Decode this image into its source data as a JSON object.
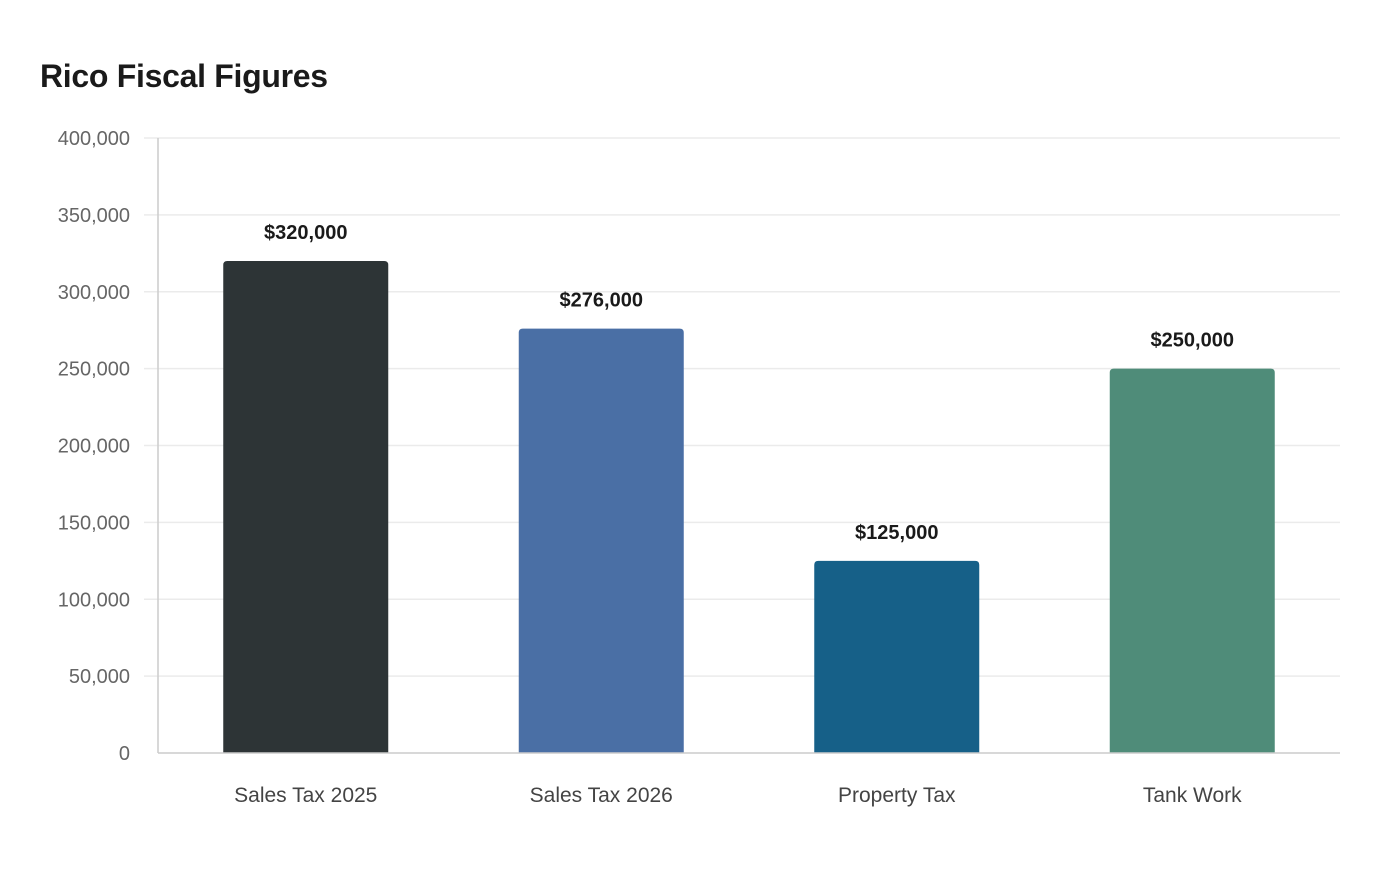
{
  "chart_data": {
    "type": "bar",
    "title": "Rico Fiscal Figures",
    "categories": [
      "Sales Tax 2025",
      "Sales Tax 2026",
      "Property Tax",
      "Tank Work"
    ],
    "values": [
      320000,
      276000,
      125000,
      250000
    ],
    "data_labels": [
      "$320,000",
      "$276,000",
      "$125,000",
      "$250,000"
    ],
    "colors": [
      "#2d3436",
      "#4a6fa5",
      "#166088",
      "#4f8c79"
    ],
    "ylim": [
      0,
      400000
    ],
    "yticks": [
      0,
      50000,
      100000,
      150000,
      200000,
      250000,
      300000,
      350000,
      400000
    ],
    "ytick_labels": [
      "0",
      "50,000",
      "100,000",
      "150,000",
      "200,000",
      "250,000",
      "300,000",
      "350,000",
      "400,000"
    ],
    "xlabel": "",
    "ylabel": "",
    "grid": true,
    "legend": "none"
  }
}
